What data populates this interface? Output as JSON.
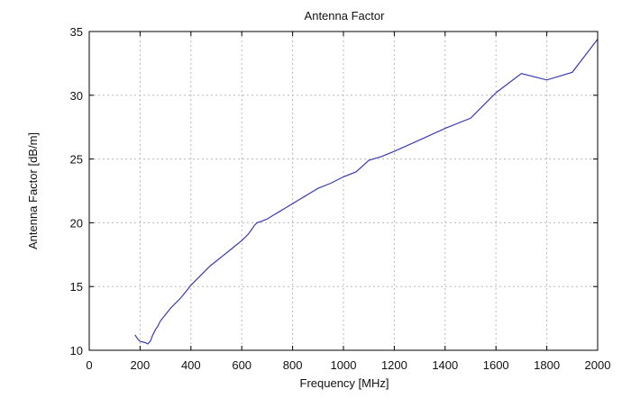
{
  "chart_data": {
    "type": "line",
    "title": "Antenna Factor",
    "xlabel": "Frequency [MHz]",
    "ylabel": "Antenna Factor [dB/m]",
    "xlim": [
      0,
      2000
    ],
    "ylim": [
      10,
      35
    ],
    "xticks": [
      0,
      200,
      400,
      600,
      800,
      1000,
      1200,
      1400,
      1600,
      1800,
      2000
    ],
    "yticks": [
      10,
      15,
      20,
      25,
      30,
      35
    ],
    "grid": true,
    "line_color": "#3b3bb0",
    "series": [
      {
        "x": [
          180,
          190,
          200,
          220,
          230,
          240,
          250,
          260,
          270,
          280,
          300,
          320,
          340,
          360,
          380,
          400,
          425,
          450,
          475,
          500,
          525,
          550,
          575,
          600,
          625,
          640,
          650,
          660,
          675,
          700,
          725,
          750,
          775,
          800,
          825,
          850,
          875,
          900,
          950,
          1000,
          1050,
          1100,
          1150,
          1200,
          1300,
          1400,
          1500,
          1600,
          1700,
          1800,
          1900,
          2000
        ],
        "y": [
          11.2,
          10.9,
          10.7,
          10.6,
          10.5,
          10.7,
          11.2,
          11.6,
          11.9,
          12.3,
          12.8,
          13.3,
          13.7,
          14.1,
          14.6,
          15.1,
          15.6,
          16.1,
          16.6,
          17.0,
          17.4,
          17.8,
          18.2,
          18.6,
          19.1,
          19.5,
          19.8,
          20.0,
          20.1,
          20.3,
          20.6,
          20.9,
          21.2,
          21.5,
          21.8,
          22.1,
          22.4,
          22.7,
          23.1,
          23.6,
          24.0,
          24.9,
          25.2,
          25.6,
          26.5,
          27.4,
          28.2,
          30.2,
          31.7,
          31.2,
          31.8,
          34.4
        ]
      }
    ]
  }
}
